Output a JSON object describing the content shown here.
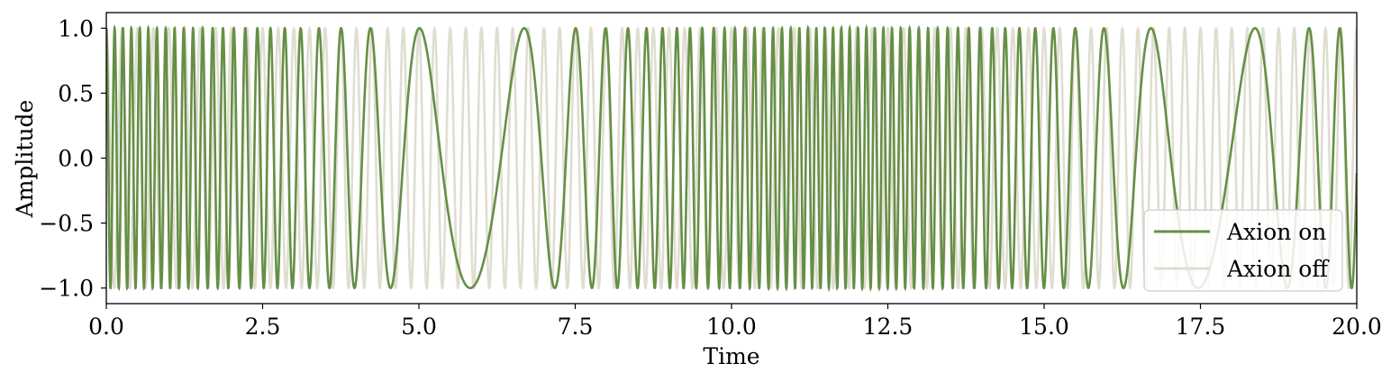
{
  "chart_data": {
    "type": "line",
    "title": "",
    "xlabel": "Time",
    "ylabel": "Amplitude",
    "xlim": [
      0,
      20
    ],
    "ylim": [
      -1.12,
      1.12
    ],
    "xticks": [
      0,
      2.5,
      5,
      7.5,
      10,
      12.5,
      15,
      17.5,
      20
    ],
    "xtick_labels": [
      "0.0",
      "2.5",
      "5.0",
      "7.5",
      "10.0",
      "12.5",
      "15.0",
      "17.5",
      "20.0"
    ],
    "yticks": [
      1.0,
      0.5,
      0.0,
      -0.5,
      -1.0
    ],
    "ytick_labels": [
      "1.0",
      "0.5",
      "0.0",
      "−0.5",
      "−1.0"
    ],
    "grid": false,
    "legend_position": "lower-right",
    "series": [
      {
        "name": "Axion off",
        "color": "#e0ddd1",
        "function": "cos(2*pi*f*t)",
        "frequency_hz": 4.0
      },
      {
        "name": "Axion on",
        "color": "#668f46",
        "function": "cos(phase(t))",
        "base_frequency_hz": 4.0,
        "modulation_frequency_hz": 0.085,
        "frequency_modulation_depth": 0.88
      }
    ]
  }
}
